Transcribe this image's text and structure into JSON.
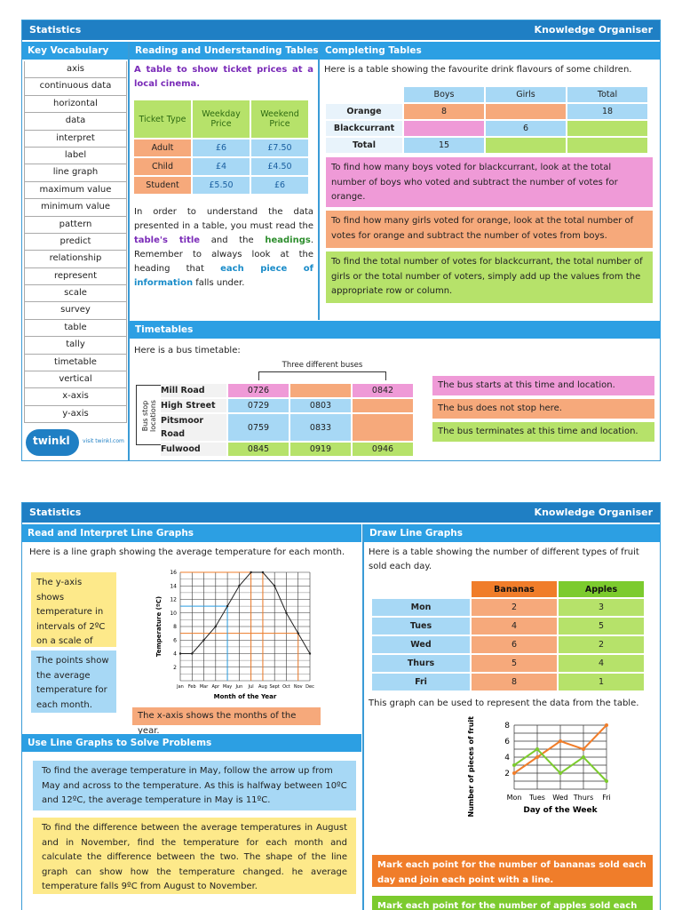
{
  "page1": {
    "title": "Statistics",
    "organiser": "Knowledge Organiser",
    "vocab_head": "Key Vocabulary",
    "vocab": [
      "axis",
      "continuous data",
      "horizontal",
      "data",
      "interpret",
      "label",
      "line graph",
      "maximum value",
      "minimum value",
      "pattern",
      "predict",
      "relationship",
      "represent",
      "scale",
      "survey",
      "table",
      "tally",
      "timetable",
      "vertical",
      "x-axis",
      "y-axis"
    ],
    "logo": "twinkl",
    "logo_url": "visit twinkl.com",
    "reading": {
      "head": "Reading and Understanding Tables",
      "intro": "A table to show ticket prices at a local cinema.",
      "cols": [
        "Ticket Type",
        "Weekday Price",
        "Weekend Price"
      ],
      "rows": [
        [
          "Adult",
          "£6",
          "£7.50"
        ],
        [
          "Child",
          "£4",
          "£4.50"
        ],
        [
          "Student",
          "£5.50",
          "£6"
        ]
      ],
      "p1": "In order to understand the data presented in a table, you must read the ",
      "p_title": "table's title",
      "p2": " and the ",
      "p_head": "headings",
      "p3": ". Remember to always look at the heading that ",
      "p_each": "each piece of information",
      "p4": " falls under."
    },
    "completing": {
      "head": "Completing Tables",
      "intro": "Here is a table showing the favourite drink flavours of some children.",
      "cols": [
        "",
        "Boys",
        "Girls",
        "Total"
      ],
      "rows": [
        [
          "Orange",
          "8",
          "",
          "18"
        ],
        [
          "Blackcurrant",
          "",
          "6",
          ""
        ],
        [
          "Total",
          "15",
          "",
          ""
        ]
      ],
      "tip1": "To find how many boys voted for blackcurrant, look at the total number of boys who voted and subtract the number of votes for orange.",
      "tip2": "To find how many girls voted for orange, look at the total number of votes for orange and subtract the number of votes from boys.",
      "tip3": "To find the total number of votes for blackcurrant, the total number of girls or the total number of voters, simply add up the values from the appropriate row or column."
    },
    "timetables": {
      "head": "Timetables",
      "intro": "Here is a bus timetable:",
      "buses_label": "Three different buses",
      "stop_label": "Bus stop locations",
      "rows": [
        [
          "Mill Road",
          "0726",
          "",
          "0842"
        ],
        [
          "High Street",
          "0729",
          "0803",
          ""
        ],
        [
          "Pitsmoor Road",
          "0759",
          "0833",
          ""
        ],
        [
          "Fulwood",
          "0845",
          "0919",
          "0946"
        ]
      ],
      "note1": "The bus starts at this time and location.",
      "note2": "The bus does not stop here.",
      "note3": "The bus terminates at this time and location."
    }
  },
  "page2": {
    "title": "Statistics",
    "organiser": "Knowledge Organiser",
    "line_head": "Read and Interpret Line Graphs",
    "line_intro": "Here is a line graph showing the average temperature for each month.",
    "note_y": "The y-axis shows temperature in intervals of 2ºC on a scale of 0ºC to 16ºC.",
    "note_points": "The points show the average temperature for each month.",
    "note_x": "The x-axis shows the months of the year.",
    "solve_head": "Use Line Graphs to Solve Problems",
    "solve1": "To find the average temperature in May, follow the arrow up from May and across to the temperature. As this is halfway between 10ºC and 12ºC, the average temperature in May is 11ºC.",
    "solve2": "To find the difference between the average temperatures in August and in November, find the temperature for each month and calculate the difference between the two. The shape of the line graph can show how the temperature changed. he average temperature falls 9ºC from August to November.",
    "draw_head": "Draw Line Graphs",
    "draw_intro": "Here is a table showing the number of different types of fruit sold each day.",
    "fruit_cols": [
      "",
      "Bananas",
      "Apples"
    ],
    "fruit_rows": [
      [
        "Mon",
        "2",
        "3"
      ],
      [
        "Tues",
        "4",
        "5"
      ],
      [
        "Wed",
        "6",
        "2"
      ],
      [
        "Thurs",
        "5",
        "4"
      ],
      [
        "Fri",
        "8",
        "1"
      ]
    ],
    "draw_graph_intro": "This graph can be used to represent the data from the table.",
    "draw_note1": "Mark each point for the number of bananas sold each day and join each point with a line.",
    "draw_note2": "Mark each point for the number of apples sold each day"
  },
  "chart_data": [
    {
      "type": "line",
      "xlabel": "Month of the Year",
      "ylabel": "Temperature (ºC)",
      "categories": [
        "Jan",
        "Feb",
        "Mar",
        "Apr",
        "May",
        "Jun",
        "Jul",
        "Aug",
        "Sept",
        "Oct",
        "Nov",
        "Dec"
      ],
      "series": [
        {
          "values": [
            4,
            4,
            6,
            8,
            11,
            14,
            16,
            16,
            14,
            10,
            7,
            4
          ]
        }
      ],
      "ylim": [
        0,
        16
      ],
      "yticks": [
        2,
        4,
        6,
        8,
        10,
        12,
        14,
        16
      ],
      "colors": {
        "line": "#222",
        "arrows": "#f07d2a",
        "may_arrow": "#2c9fe3"
      }
    },
    {
      "type": "line",
      "xlabel": "Day of the Week",
      "ylabel": "Number of pieces of fruit sold",
      "categories": [
        "Mon",
        "Tues",
        "Wed",
        "Thurs",
        "Fri"
      ],
      "series": [
        {
          "name": "Bananas",
          "values": [
            2,
            4,
            6,
            5,
            8
          ],
          "color": "#f07d2a"
        },
        {
          "name": "Apples",
          "values": [
            3,
            5,
            2,
            4,
            1
          ],
          "color": "#7ccb2e"
        }
      ],
      "ylim": [
        0,
        8
      ],
      "yticks": [
        2,
        4,
        6,
        8
      ]
    }
  ]
}
